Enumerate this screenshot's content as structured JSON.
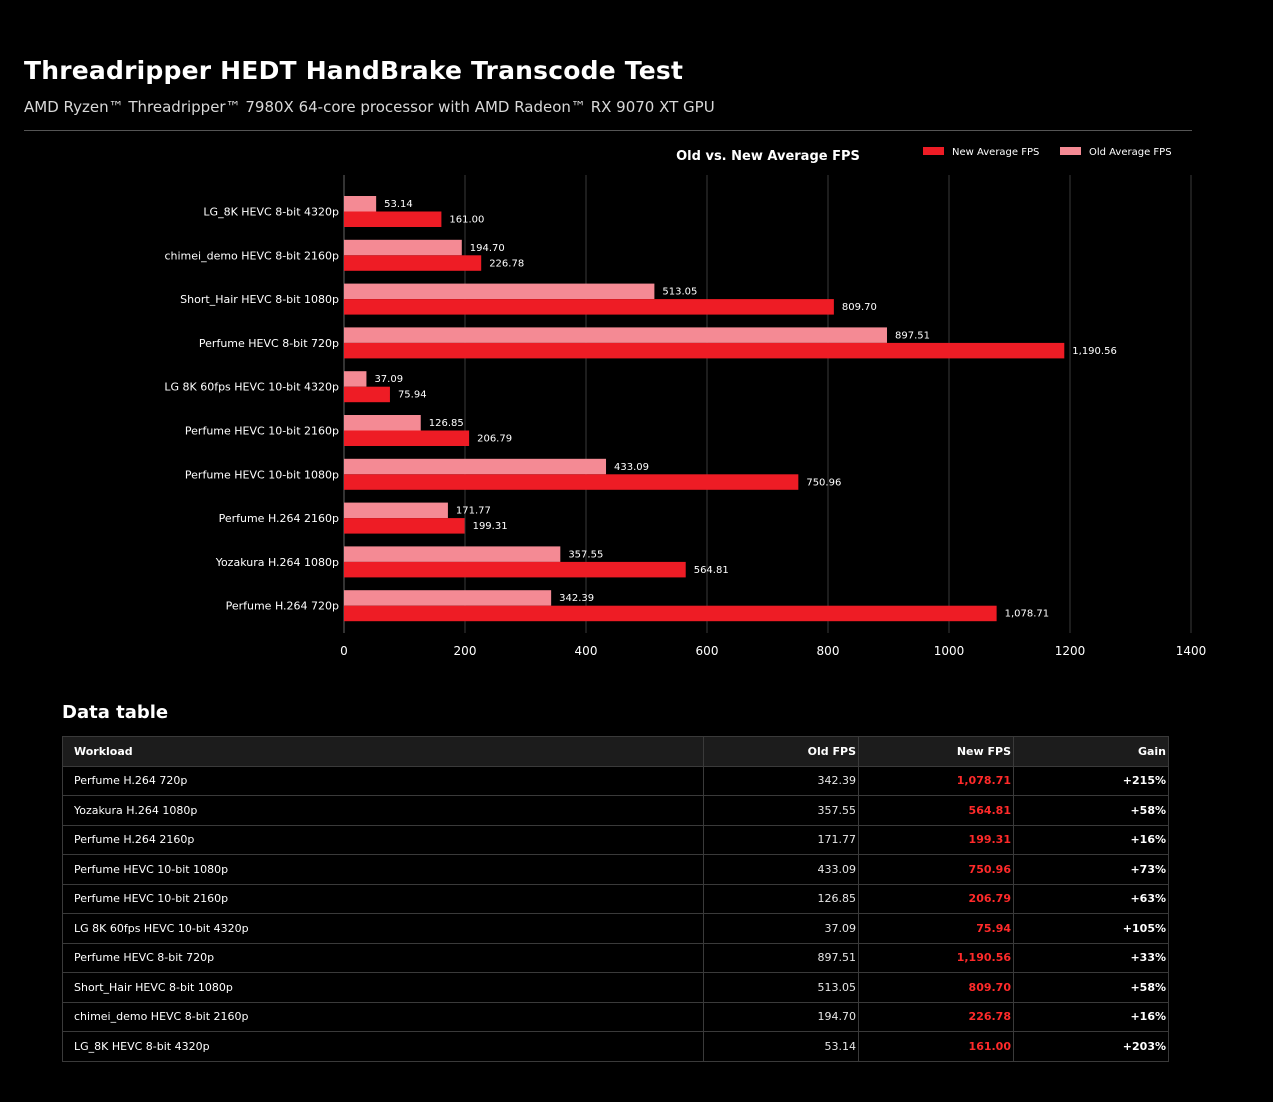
{
  "header": {
    "title": "Threadripper HEDT HandBrake Transcode Test",
    "subtitle": "AMD Ryzen™ Threadripper™ 7980X 64-core processor with AMD Radeon™ RX 9070 XT GPU"
  },
  "colors": {
    "new_fps": "#ee1c25",
    "old_fps": "#f48a94",
    "background": "#000000",
    "gridline": "#3a3a3a"
  },
  "chart_data": {
    "type": "bar",
    "orientation": "horizontal",
    "title": "Old vs. New Average FPS",
    "xlabel": "",
    "ylabel": "",
    "xlim": [
      0,
      1400
    ],
    "xticks": [
      0,
      200,
      400,
      600,
      800,
      1000,
      1200,
      1400
    ],
    "grid": true,
    "legend_position": "top-right",
    "categories": [
      "LG_8K HEVC 8-bit 4320p",
      "chimei_demo HEVC 8-bit 2160p",
      "Short_Hair HEVC 8-bit 1080p",
      "Perfume HEVC 8-bit 720p",
      "LG 8K 60fps HEVC 10-bit 4320p",
      "Perfume HEVC 10-bit 2160p",
      "Perfume HEVC 10-bit 1080p",
      "Perfume H.264 2160p",
      "Yozakura H.264 1080p",
      "Perfume H.264 720p"
    ],
    "series": [
      {
        "name": "New Average FPS",
        "color": "#ee1c25",
        "values": [
          161.0,
          226.78,
          809.7,
          1190.56,
          75.94,
          206.79,
          750.96,
          199.31,
          564.81,
          1078.71
        ],
        "labels": [
          "161.00",
          "226.78",
          "809.70",
          "1,190.56",
          "75.94",
          "206.79",
          "750.96",
          "199.31",
          "564.81",
          "1,078.71"
        ]
      },
      {
        "name": "Old Average FPS",
        "color": "#f48a94",
        "values": [
          53.14,
          194.7,
          513.05,
          897.51,
          37.09,
          126.85,
          433.09,
          171.77,
          357.55,
          342.39
        ],
        "labels": [
          "53.14",
          "194.70",
          "513.05",
          "897.51",
          "37.09",
          "126.85",
          "433.09",
          "171.77",
          "357.55",
          "342.39"
        ]
      }
    ]
  },
  "table": {
    "title": "Data table",
    "headers": {
      "workload": "Workload",
      "old": "Old FPS",
      "new": "New FPS",
      "gain": "Gain"
    },
    "rows": [
      {
        "workload": "Perfume H.264 720p",
        "old": "342.39",
        "new": "1,078.71",
        "gain": "+215%"
      },
      {
        "workload": "Yozakura H.264 1080p",
        "old": "357.55",
        "new": "564.81",
        "gain": "+58%"
      },
      {
        "workload": "Perfume H.264 2160p",
        "old": "171.77",
        "new": "199.31",
        "gain": "+16%"
      },
      {
        "workload": "Perfume HEVC 10-bit 1080p",
        "old": "433.09",
        "new": "750.96",
        "gain": "+73%"
      },
      {
        "workload": "Perfume HEVC 10-bit 2160p",
        "old": "126.85",
        "new": "206.79",
        "gain": "+63%"
      },
      {
        "workload": "LG 8K 60fps HEVC 10-bit 4320p",
        "old": "37.09",
        "new": "75.94",
        "gain": "+105%"
      },
      {
        "workload": "Perfume HEVC 8-bit 720p",
        "old": "897.51",
        "new": "1,190.56",
        "gain": "+33%"
      },
      {
        "workload": "Short_Hair HEVC 8-bit 1080p",
        "old": "513.05",
        "new": "809.70",
        "gain": "+58%"
      },
      {
        "workload": "chimei_demo HEVC 8-bit 2160p",
        "old": "194.70",
        "new": "226.78",
        "gain": "+16%"
      },
      {
        "workload": "LG_8K HEVC 8-bit 4320p",
        "old": "53.14",
        "new": "161.00",
        "gain": "+203%"
      }
    ]
  }
}
